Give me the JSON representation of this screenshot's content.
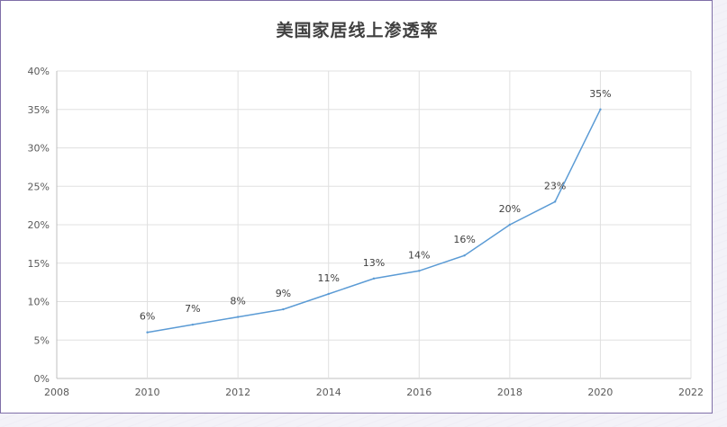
{
  "chart_data": {
    "type": "line",
    "title": "美国家居线上渗透率",
    "xlabel": "",
    "ylabel": "",
    "xlim": [
      2008,
      2022
    ],
    "ylim": [
      0,
      0.4
    ],
    "x_ticks": [
      "2008",
      "2010",
      "2012",
      "2014",
      "2016",
      "2018",
      "2020",
      "2022"
    ],
    "y_ticks": [
      "0%",
      "5%",
      "10%",
      "15%",
      "20%",
      "25%",
      "30%",
      "35%",
      "40%"
    ],
    "grid": true,
    "legend": "none",
    "series": [
      {
        "x": [
          2010,
          2011,
          2012,
          2013,
          2014,
          2015,
          2016,
          2017,
          2018,
          2019,
          2020
        ],
        "values": [
          0.06,
          0.07,
          0.08,
          0.09,
          0.11,
          0.13,
          0.14,
          0.16,
          0.2,
          0.23,
          0.35
        ],
        "labels": [
          "6%",
          "7%",
          "8%",
          "9%",
          "11%",
          "13%",
          "14%",
          "16%",
          "20%",
          "23%",
          "35%"
        ],
        "color": "#5b9bd5"
      }
    ]
  }
}
